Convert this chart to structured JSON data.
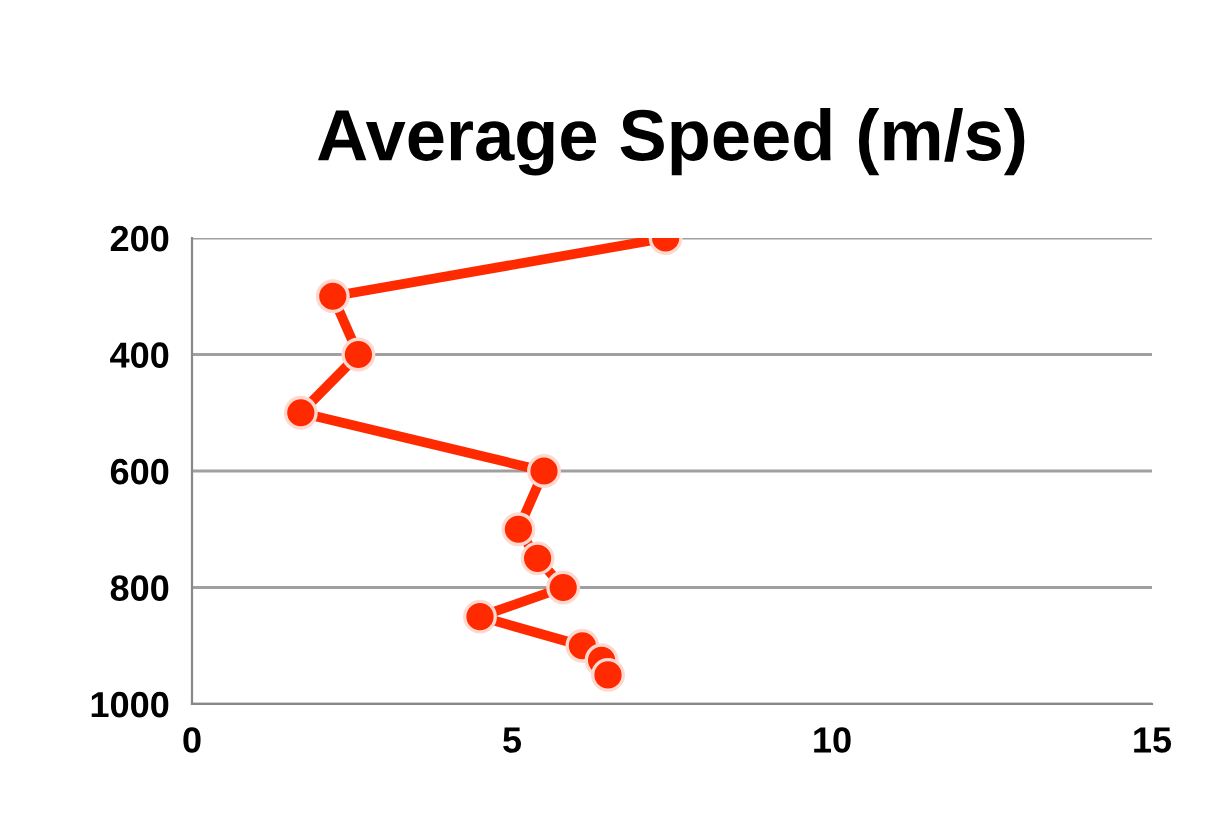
{
  "chart_data": {
    "type": "line",
    "title": "Average Speed (m/s)",
    "series": [
      {
        "color": "#ff2a00",
        "x": [
          7.4,
          2.2,
          2.6,
          1.7,
          5.5,
          5.1,
          5.4,
          5.8,
          4.5,
          6.1,
          6.4,
          6.5
        ],
        "values": [
          200,
          300,
          400,
          500,
          600,
          700,
          750,
          800,
          850,
          900,
          925,
          950
        ]
      }
    ],
    "xlim": [
      0,
      15
    ],
    "xticks": [
      0,
      5,
      10,
      15
    ],
    "ylim": [
      1000,
      200
    ],
    "yticks": [
      200,
      400,
      600,
      800,
      1000
    ],
    "grid": "y",
    "marker": "circle",
    "line_style": "solid"
  }
}
